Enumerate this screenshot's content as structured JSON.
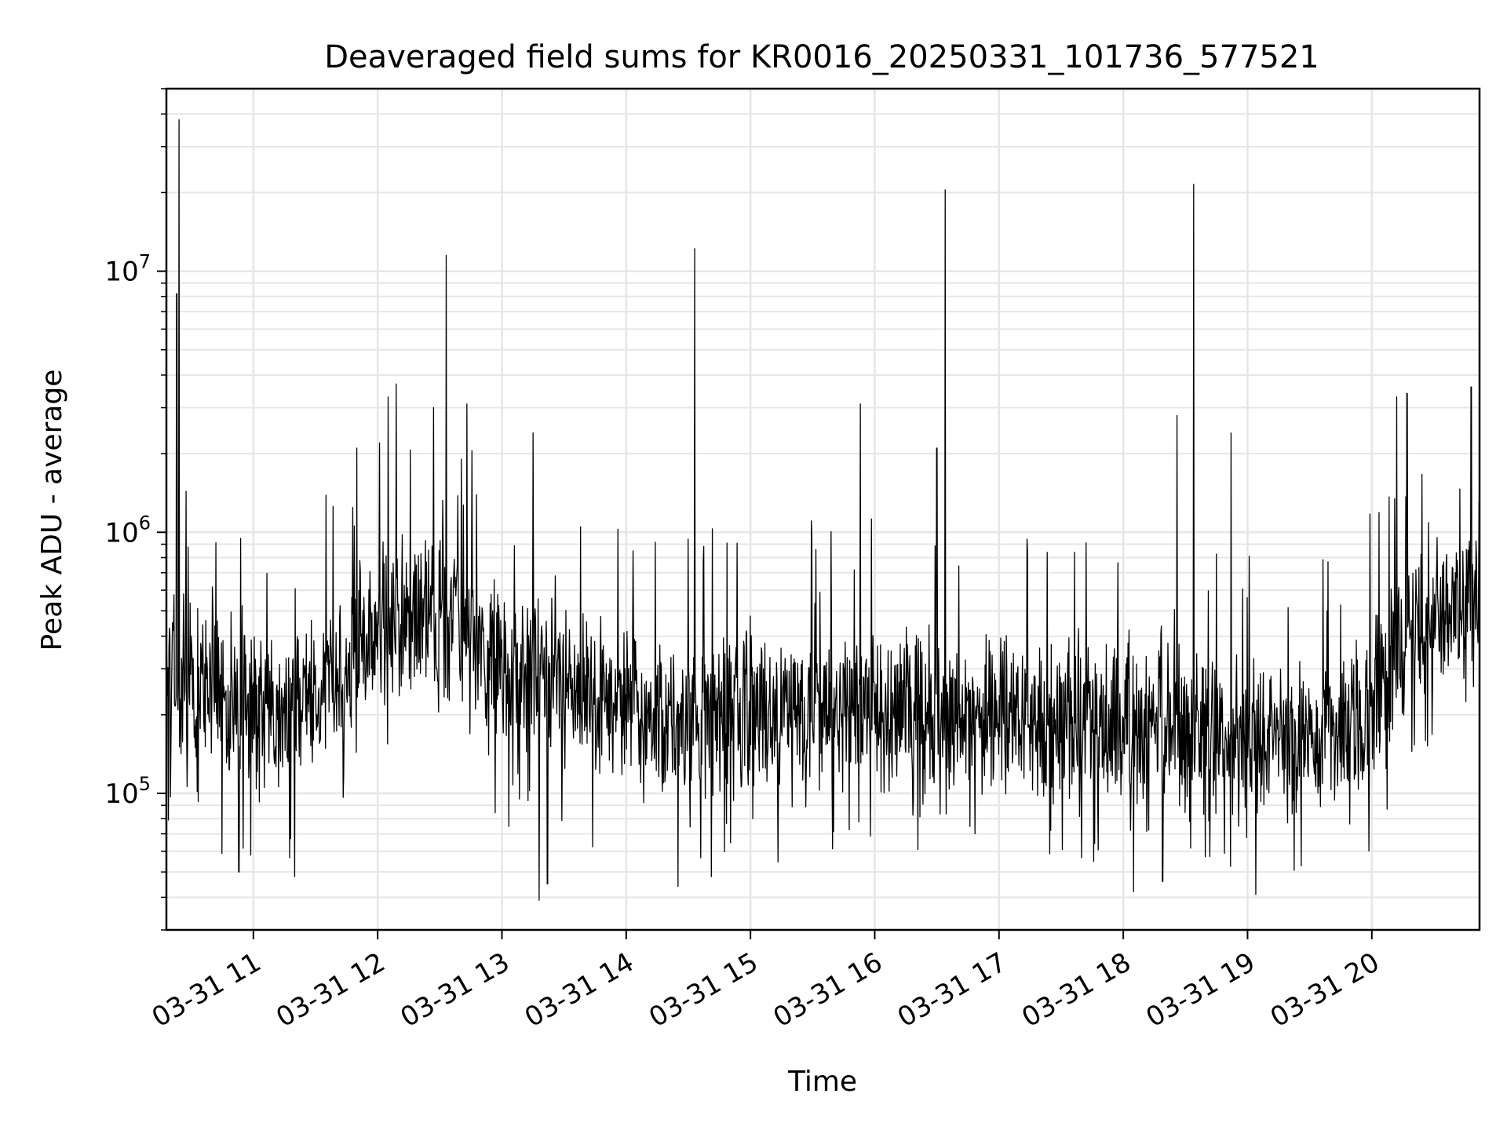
{
  "chart_data": {
    "type": "line",
    "title": "Deaveraged field sums for KR0016_20250331_101736_577521",
    "xlabel": "Time",
    "ylabel": "Peak ADU - average",
    "yscale": "log",
    "ylim": [
      30000,
      50000000
    ],
    "xlim": [
      "2025-03-31 10:18",
      "2025-03-31 20:52"
    ],
    "grid": true,
    "line_color": "#000000",
    "grid_color": "#e6e6e6",
    "x_ticks": [
      {
        "value": "2025-03-31 11:00",
        "label": "03-31 11"
      },
      {
        "value": "2025-03-31 12:00",
        "label": "03-31 12"
      },
      {
        "value": "2025-03-31 13:00",
        "label": "03-31 13"
      },
      {
        "value": "2025-03-31 14:00",
        "label": "03-31 14"
      },
      {
        "value": "2025-03-31 15:00",
        "label": "03-31 15"
      },
      {
        "value": "2025-03-31 16:00",
        "label": "03-31 16"
      },
      {
        "value": "2025-03-31 17:00",
        "label": "03-31 17"
      },
      {
        "value": "2025-03-31 18:00",
        "label": "03-31 18"
      },
      {
        "value": "2025-03-31 19:00",
        "label": "03-31 19"
      },
      {
        "value": "2025-03-31 20:00",
        "label": "03-31 20"
      }
    ],
    "y_ticks": [
      {
        "value": 100000,
        "base": "10",
        "exp": "5"
      },
      {
        "value": 1000000,
        "base": "10",
        "exp": "6"
      },
      {
        "value": 10000000,
        "base": "10",
        "exp": "7"
      }
    ],
    "baseline": [
      [
        "2025-03-31 10:18",
        300000
      ],
      [
        "2025-03-31 10:30",
        260000
      ],
      [
        "2025-03-31 10:45",
        220000
      ],
      [
        "2025-03-31 11:00",
        200000
      ],
      [
        "2025-03-31 11:20",
        220000
      ],
      [
        "2025-03-31 11:40",
        280000
      ],
      [
        "2025-03-31 12:00",
        420000
      ],
      [
        "2025-03-31 12:20",
        480000
      ],
      [
        "2025-03-31 12:40",
        450000
      ],
      [
        "2025-03-31 13:00",
        300000
      ],
      [
        "2025-03-31 13:30",
        250000
      ],
      [
        "2025-03-31 14:00",
        220000
      ],
      [
        "2025-03-31 14:30",
        180000
      ],
      [
        "2025-03-31 15:00",
        200000
      ],
      [
        "2025-03-31 16:00",
        210000
      ],
      [
        "2025-03-31 17:00",
        200000
      ],
      [
        "2025-03-31 18:00",
        180000
      ],
      [
        "2025-03-31 19:00",
        160000
      ],
      [
        "2025-03-31 19:50",
        170000
      ],
      [
        "2025-03-31 20:20",
        380000
      ],
      [
        "2025-03-31 20:52",
        600000
      ]
    ],
    "spikes": [
      [
        "2025-03-31 10:24",
        38000000
      ],
      [
        "2025-03-31 10:23",
        8200000
      ],
      [
        "2025-03-31 12:33",
        11500000
      ],
      [
        "2025-03-31 14:33",
        12200000
      ],
      [
        "2025-03-31 16:34",
        20500000
      ],
      [
        "2025-03-31 18:34",
        21500000
      ],
      [
        "2025-03-31 15:53",
        3100000
      ],
      [
        "2025-03-31 12:05",
        3300000
      ],
      [
        "2025-03-31 12:09",
        3700000
      ],
      [
        "2025-03-31 13:15",
        2400000
      ],
      [
        "2025-03-31 18:26",
        2800000
      ],
      [
        "2025-03-31 18:52",
        2400000
      ],
      [
        "2025-03-31 20:12",
        3300000
      ],
      [
        "2025-03-31 20:17",
        3400000
      ],
      [
        "2025-03-31 20:48",
        3600000
      ],
      [
        "2025-03-31 12:43",
        3100000
      ],
      [
        "2025-03-31 12:27",
        3000000
      ],
      [
        "2025-03-31 11:50",
        2100000
      ],
      [
        "2025-03-31 16:30",
        2100000
      ]
    ],
    "dips": [
      [
        "2025-03-31 13:18",
        39000
      ],
      [
        "2025-03-31 18:05",
        42000
      ],
      [
        "2025-03-31 19:04",
        41000
      ],
      [
        "2025-03-31 14:25",
        44000
      ],
      [
        "2025-03-31 11:20",
        48000
      ],
      [
        "2025-03-31 10:53",
        50000
      ],
      [
        "2025-03-31 13:22",
        45000
      ],
      [
        "2025-03-31 18:19",
        46000
      ]
    ]
  }
}
